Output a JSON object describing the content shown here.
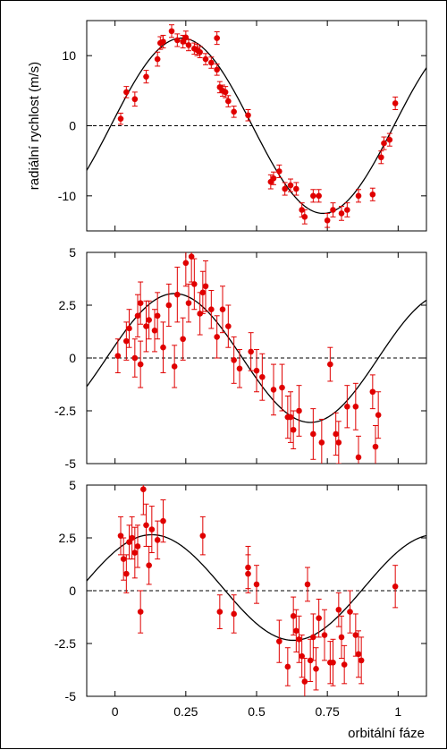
{
  "chart_data": [
    {
      "type": "scatter",
      "ylabel": "radiální rychlost (m/s)",
      "xlabel": "",
      "xlim": [
        -0.1,
        1.1
      ],
      "ylim": [
        -15,
        15
      ],
      "yticks": [
        10,
        0,
        -10
      ],
      "ytick_labels": [
        "10",
        "0",
        "-10"
      ],
      "xticks": [
        0,
        0.25,
        0.5,
        0.75,
        1
      ],
      "xtick_labels": [
        "",
        "",
        "",
        "",
        ""
      ],
      "zero_line": "dashed",
      "marker_color": "#e00000",
      "curve": {
        "offset": 0,
        "amplitude": 12.5,
        "phase_of_max": 0.235,
        "period": 1.0
      },
      "points": [
        [
          0.02,
          1.0,
          0.8
        ],
        [
          0.04,
          4.8,
          0.8
        ],
        [
          0.07,
          3.8,
          1.0
        ],
        [
          0.11,
          7.0,
          0.9
        ],
        [
          0.15,
          9.5,
          1.0
        ],
        [
          0.16,
          11.8,
          0.9
        ],
        [
          0.17,
          12.0,
          0.9
        ],
        [
          0.2,
          13.5,
          0.9
        ],
        [
          0.22,
          12.2,
          0.9
        ],
        [
          0.24,
          12.0,
          0.9
        ],
        [
          0.25,
          12.6,
          0.9
        ],
        [
          0.26,
          11.5,
          0.8
        ],
        [
          0.28,
          11.0,
          0.8
        ],
        [
          0.29,
          10.8,
          0.8
        ],
        [
          0.3,
          10.5,
          0.8
        ],
        [
          0.32,
          9.5,
          0.8
        ],
        [
          0.34,
          9.0,
          0.8
        ],
        [
          0.36,
          8.0,
          0.8
        ],
        [
          0.37,
          5.5,
          0.8
        ],
        [
          0.38,
          5.0,
          0.8
        ],
        [
          0.39,
          4.8,
          0.8
        ],
        [
          0.36,
          12.5,
          0.9
        ],
        [
          0.4,
          3.5,
          0.8
        ],
        [
          0.42,
          2.0,
          0.8
        ],
        [
          0.47,
          1.5,
          0.8
        ],
        [
          0.55,
          -8.0,
          1.0
        ],
        [
          0.56,
          -7.5,
          0.9
        ],
        [
          0.58,
          -6.5,
          0.9
        ],
        [
          0.6,
          -9.0,
          0.9
        ],
        [
          0.62,
          -8.5,
          0.9
        ],
        [
          0.64,
          -9.0,
          0.9
        ],
        [
          0.66,
          -12.0,
          1.0
        ],
        [
          0.67,
          -13.0,
          1.0
        ],
        [
          0.7,
          -10.0,
          0.9
        ],
        [
          0.72,
          -10.0,
          0.9
        ],
        [
          0.75,
          -13.5,
          1.0
        ],
        [
          0.77,
          -12.0,
          1.0
        ],
        [
          0.8,
          -12.5,
          1.0
        ],
        [
          0.82,
          -12.0,
          1.0
        ],
        [
          0.86,
          -10.0,
          0.9
        ],
        [
          0.91,
          -9.8,
          0.9
        ],
        [
          0.94,
          -4.5,
          0.9
        ],
        [
          0.95,
          -2.5,
          0.9
        ],
        [
          0.97,
          -2.0,
          0.9
        ],
        [
          0.99,
          3.2,
          0.9
        ]
      ]
    },
    {
      "type": "scatter",
      "xlim": [
        -0.1,
        1.1
      ],
      "ylim": [
        -5,
        5
      ],
      "yticks": [
        5,
        2.5,
        0,
        -2.5,
        -5
      ],
      "ytick_labels": [
        "5",
        "2.5",
        "0",
        "-2.5",
        "-5"
      ],
      "xticks": [
        0,
        0.25,
        0.5,
        0.75,
        1
      ],
      "xtick_labels": [
        "",
        "",
        "",
        "",
        ""
      ],
      "zero_line": "dashed",
      "marker_color": "#e00000",
      "curve": {
        "offset": 0,
        "amplitude": 3.05,
        "phase_of_max": 0.21,
        "period": 0.96
      },
      "points": [
        [
          0.01,
          0.1,
          0.8
        ],
        [
          0.04,
          0.8,
          0.9
        ],
        [
          0.05,
          1.4,
          0.9
        ],
        [
          0.07,
          0.0,
          0.9
        ],
        [
          0.08,
          2.0,
          1.0
        ],
        [
          0.09,
          2.6,
          1.0
        ],
        [
          0.09,
          -0.3,
          1.1
        ],
        [
          0.11,
          1.5,
          1.2
        ],
        [
          0.12,
          1.8,
          0.9
        ],
        [
          0.14,
          1.3,
          1.0
        ],
        [
          0.15,
          2.0,
          1.1
        ],
        [
          0.17,
          0.5,
          1.2
        ],
        [
          0.19,
          2.5,
          1.0
        ],
        [
          0.21,
          -0.4,
          1.0
        ],
        [
          0.22,
          3.0,
          1.3
        ],
        [
          0.24,
          0.9,
          1.0
        ],
        [
          0.25,
          4.5,
          1.1
        ],
        [
          0.26,
          2.6,
          0.9
        ],
        [
          0.27,
          4.8,
          1.2
        ],
        [
          0.28,
          3.5,
          1.2
        ],
        [
          0.3,
          2.1,
          1.0
        ],
        [
          0.31,
          3.1,
          1.0
        ],
        [
          0.32,
          3.4,
          1.2
        ],
        [
          0.34,
          2.3,
          0.9
        ],
        [
          0.36,
          1.0,
          1.0
        ],
        [
          0.38,
          2.3,
          1.1
        ],
        [
          0.4,
          1.5,
          1.0
        ],
        [
          0.42,
          -0.1,
          1.1
        ],
        [
          0.44,
          -0.5,
          0.9
        ],
        [
          0.48,
          0.3,
          0.9
        ],
        [
          0.5,
          -0.6,
          1.0
        ],
        [
          0.52,
          -0.9,
          1.1
        ],
        [
          0.56,
          -1.5,
          1.2
        ],
        [
          0.59,
          -1.4,
          1.1
        ],
        [
          0.61,
          -2.8,
          1.0
        ],
        [
          0.62,
          -2.8,
          1.2
        ],
        [
          0.63,
          -3.4,
          0.9
        ],
        [
          0.65,
          -2.5,
          1.2
        ],
        [
          0.7,
          -3.6,
          1.2
        ],
        [
          0.73,
          -4.0,
          1.1
        ],
        [
          0.76,
          -0.3,
          0.8
        ],
        [
          0.78,
          -3.6,
          1.0
        ],
        [
          0.79,
          -4.0,
          1.0
        ],
        [
          0.82,
          -2.3,
          1.0
        ],
        [
          0.85,
          -2.3,
          1.1
        ],
        [
          0.86,
          -4.7,
          1.0
        ],
        [
          0.91,
          -1.6,
          0.8
        ],
        [
          0.92,
          -4.2,
          1.0
        ],
        [
          0.93,
          -2.7,
          1.1
        ]
      ]
    },
    {
      "type": "scatter",
      "xlabel": "orbitální fáze",
      "xlim": [
        -0.1,
        1.1
      ],
      "ylim": [
        -5,
        5
      ],
      "yticks": [
        5,
        2.5,
        0,
        -2.5,
        -5
      ],
      "ytick_labels": [
        "5",
        "2.5",
        "0",
        "-2.5",
        "-5"
      ],
      "xticks": [
        0,
        0.25,
        0.5,
        0.75,
        1
      ],
      "xtick_labels": [
        "0",
        "0.25",
        "0.5",
        "0.75",
        "1"
      ],
      "zero_line": "dashed",
      "marker_color": "#e00000",
      "curve": {
        "offset": 0.15,
        "amplitude": 2.5,
        "phase_of_max": 0.13,
        "period": 1.0
      },
      "points": [
        [
          0.02,
          2.6,
          0.9
        ],
        [
          0.03,
          1.5,
          1.0
        ],
        [
          0.04,
          0.8,
          0.9
        ],
        [
          0.05,
          2.3,
          0.8
        ],
        [
          0.06,
          2.5,
          1.0
        ],
        [
          0.07,
          1.8,
          1.2
        ],
        [
          0.08,
          2.1,
          1.0
        ],
        [
          0.09,
          -1.0,
          1.0
        ],
        [
          0.1,
          4.8,
          1.2
        ],
        [
          0.11,
          3.1,
          1.0
        ],
        [
          0.12,
          1.2,
          0.9
        ],
        [
          0.13,
          2.9,
          1.1
        ],
        [
          0.15,
          2.4,
          0.9
        ],
        [
          0.17,
          3.3,
          1.0
        ],
        [
          0.31,
          2.6,
          0.9
        ],
        [
          0.37,
          -1.0,
          0.8
        ],
        [
          0.42,
          -1.1,
          0.9
        ],
        [
          0.47,
          0.8,
          0.9
        ],
        [
          0.47,
          1.1,
          1.0
        ],
        [
          0.5,
          0.3,
          0.9
        ],
        [
          0.58,
          -2.4,
          1.0
        ],
        [
          0.61,
          -3.6,
          0.9
        ],
        [
          0.63,
          -1.2,
          0.9
        ],
        [
          0.64,
          -1.9,
          1.0
        ],
        [
          0.65,
          -2.3,
          1.1
        ],
        [
          0.66,
          -3.1,
          1.0
        ],
        [
          0.67,
          -4.3,
          1.1
        ],
        [
          0.68,
          0.3,
          0.8
        ],
        [
          0.69,
          -3.3,
          1.0
        ],
        [
          0.7,
          -2.2,
          1.1
        ],
        [
          0.71,
          -3.7,
          1.0
        ],
        [
          0.72,
          -1.3,
          0.9
        ],
        [
          0.74,
          -2.1,
          1.2
        ],
        [
          0.76,
          -3.4,
          1.0
        ],
        [
          0.77,
          -3.4,
          1.1
        ],
        [
          0.79,
          -0.9,
          0.8
        ],
        [
          0.8,
          -2.2,
          1.0
        ],
        [
          0.81,
          -3.5,
          0.9
        ],
        [
          0.83,
          -1.0,
          1.0
        ],
        [
          0.85,
          -2.1,
          1.0
        ],
        [
          0.86,
          -3.0,
          1.1
        ],
        [
          0.87,
          -3.3,
          1.1
        ],
        [
          0.99,
          0.2,
          1.0
        ]
      ]
    }
  ]
}
